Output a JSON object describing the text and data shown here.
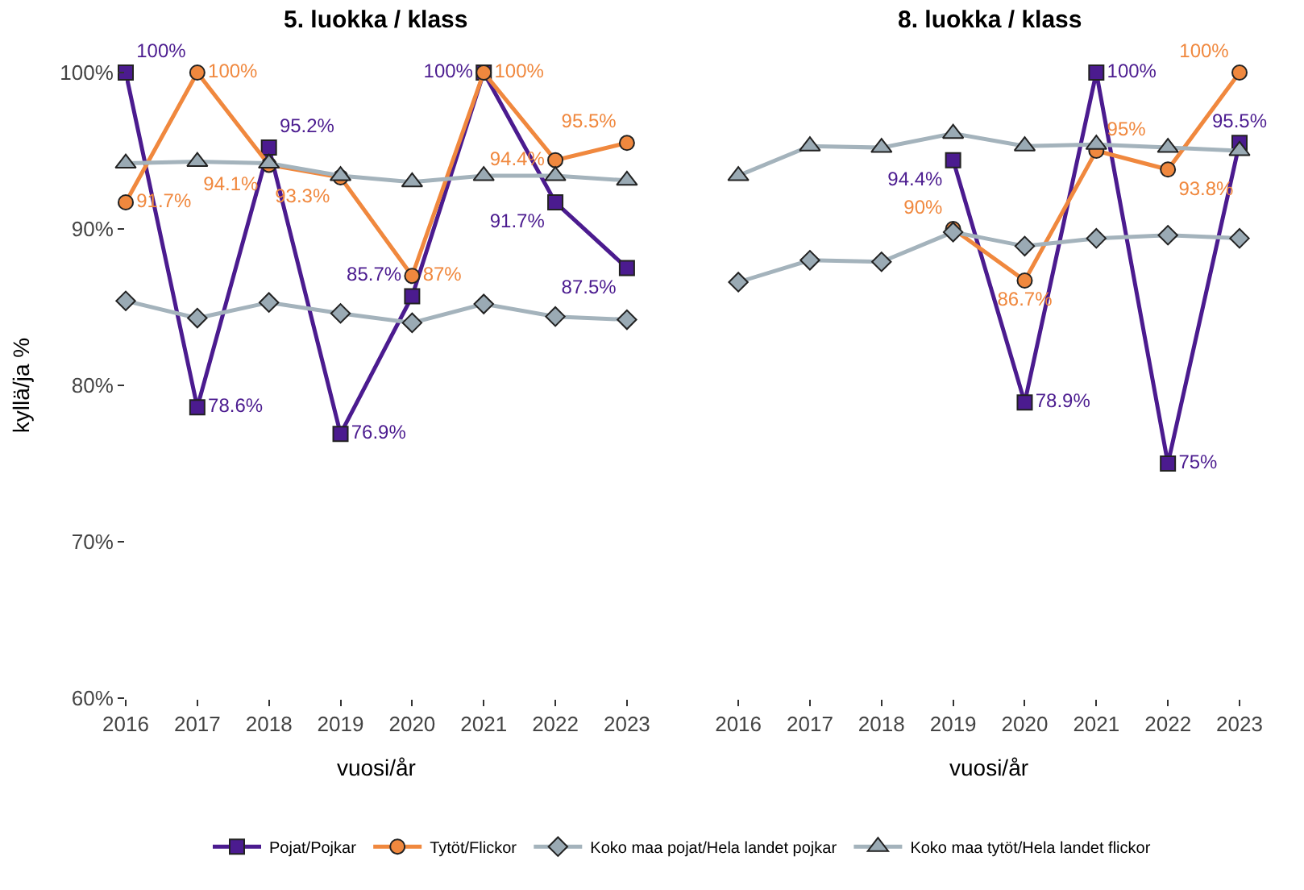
{
  "chart_data": [
    {
      "type": "line",
      "title": "5. luokka / klass",
      "xlabel": "vuosi/år",
      "ylabel": "kyllä/ja %",
      "x": [
        2016,
        2017,
        2018,
        2019,
        2020,
        2021,
        2022,
        2023
      ],
      "xlim": [
        2016,
        2023
      ],
      "xticks": [
        2016,
        2017,
        2018,
        2019,
        2020,
        2021,
        2022,
        2023
      ],
      "ylim": [
        60,
        100
      ],
      "yticks": [
        {
          "value": 60,
          "label": "60%"
        },
        {
          "value": 70,
          "label": "70%"
        },
        {
          "value": 80,
          "label": "80%"
        },
        {
          "value": 90,
          "label": "90%"
        },
        {
          "value": 100,
          "label": "100%"
        }
      ],
      "legend": "bottom",
      "series": [
        {
          "name": "Pojat/Pojkar",
          "color": "#4b1b8f",
          "marker": "square",
          "values": [
            100,
            78.6,
            95.2,
            76.9,
            85.7,
            100,
            91.7,
            87.5
          ],
          "value_labels": [
            "100%",
            "78.6%",
            "95.2%",
            "76.9%",
            "85.7%",
            "100%",
            "91.7%",
            "87.5%"
          ]
        },
        {
          "name": "Tytöt/Flickor",
          "color": "#f0883e",
          "marker": "circle",
          "values": [
            91.7,
            100,
            94.1,
            93.3,
            87,
            100,
            94.4,
            95.5
          ],
          "value_labels": [
            "91.7%",
            "100%",
            "94.1%",
            "93.3%",
            "87%",
            "100%",
            "94.4%",
            "95.5%"
          ]
        },
        {
          "name": "Koko maa pojat/Hela landet pojkar",
          "color": "#a4b3bc",
          "marker": "diamond",
          "values": [
            85.4,
            84.3,
            85.3,
            84.6,
            84.0,
            85.2,
            84.4,
            84.2
          ]
        },
        {
          "name": "Koko maa tytöt/Hela landet flickor",
          "color": "#a4b3bc",
          "marker": "triangle",
          "values": [
            94.2,
            94.3,
            94.2,
            93.4,
            93.0,
            93.4,
            93.4,
            93.1
          ]
        }
      ]
    },
    {
      "type": "line",
      "title": "8. luokka / klass",
      "xlabel": "vuosi/år",
      "x": [
        2016,
        2017,
        2018,
        2019,
        2020,
        2021,
        2022,
        2023
      ],
      "xlim": [
        2016,
        2023
      ],
      "xticks": [
        2016,
        2017,
        2018,
        2019,
        2020,
        2021,
        2022,
        2023
      ],
      "ylim": [
        60,
        100
      ],
      "tick_labels": "x",
      "series": [
        {
          "name": "Pojat/Pojkar",
          "color": "#4b1b8f",
          "marker": "square",
          "values": [
            null,
            null,
            null,
            94.4,
            78.9,
            100,
            75,
            95.5
          ],
          "value_labels": [
            null,
            null,
            null,
            "94.4%",
            "78.9%",
            "100%",
            "75%",
            "95.5%"
          ]
        },
        {
          "name": "Tytöt/Flickor",
          "color": "#f0883e",
          "marker": "circle",
          "values": [
            null,
            null,
            null,
            90,
            86.7,
            95,
            93.8,
            100
          ],
          "value_labels": [
            null,
            null,
            null,
            "90%",
            "86.7%",
            "95%",
            "93.8%",
            "100%"
          ]
        },
        {
          "name": "Koko maa pojat/Hela landet pojkar",
          "color": "#a4b3bc",
          "marker": "diamond",
          "values": [
            86.6,
            88.0,
            87.9,
            89.8,
            88.9,
            89.4,
            89.6,
            89.4
          ]
        },
        {
          "name": "Koko maa tytöt/Hela landet flickor",
          "color": "#a4b3bc",
          "marker": "triangle",
          "values": [
            93.4,
            95.3,
            95.2,
            96.1,
            95.3,
            95.4,
            95.2,
            95.0
          ]
        }
      ]
    }
  ]
}
